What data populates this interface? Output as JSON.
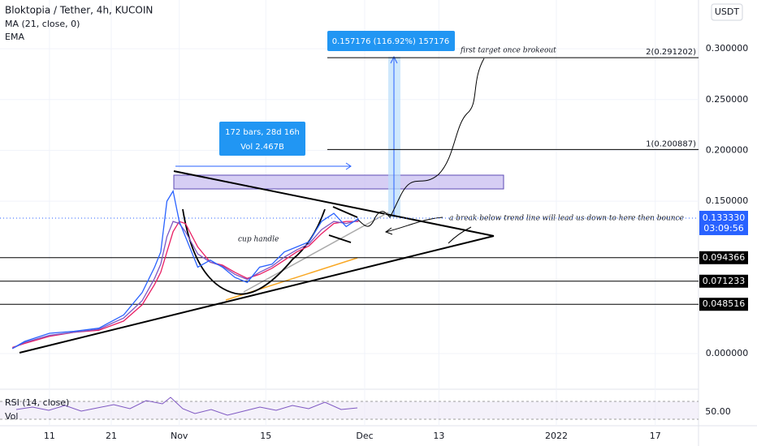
{
  "chart_data": {
    "type": "line",
    "title": "Bloktopia / Tether, 4h, KUCOIN",
    "currency": "USDT",
    "x": [
      4,
      6,
      10,
      14,
      18,
      22,
      25,
      27,
      28,
      29,
      30,
      31,
      32,
      34,
      36,
      38,
      40,
      42,
      44,
      46,
      48,
      50,
      52,
      54,
      56,
      58,
      60
    ],
    "values": [
      0.005,
      0.012,
      0.02,
      0.022,
      0.025,
      0.038,
      0.06,
      0.085,
      0.1,
      0.15,
      0.16,
      0.13,
      0.115,
      0.085,
      0.092,
      0.085,
      0.075,
      0.07,
      0.085,
      0.088,
      0.1,
      0.105,
      0.11,
      0.13,
      0.138,
      0.125,
      0.133
    ],
    "color": "#2962ff",
    "series": [
      {
        "name": "MA (21, close, 0)",
        "color": "#e91e63",
        "values": [
          0.006,
          0.01,
          0.017,
          0.021,
          0.023,
          0.032,
          0.048,
          0.068,
          0.08,
          0.1,
          0.12,
          0.13,
          0.128,
          0.105,
          0.09,
          0.087,
          0.08,
          0.074,
          0.078,
          0.084,
          0.092,
          0.1,
          0.106,
          0.118,
          0.128,
          0.13,
          0.13
        ]
      },
      {
        "name": "EMA",
        "color": "#7e57c2",
        "values": [
          0.005,
          0.011,
          0.018,
          0.021,
          0.024,
          0.035,
          0.052,
          0.074,
          0.088,
          0.115,
          0.13,
          0.128,
          0.12,
          0.098,
          0.09,
          0.086,
          0.078,
          0.073,
          0.08,
          0.086,
          0.095,
          0.102,
          0.108,
          0.122,
          0.13,
          0.128,
          0.131
        ]
      }
    ],
    "xlim": [
      2,
      115
    ],
    "xticks": [
      {
        "value": 10,
        "label": "11"
      },
      {
        "value": 20,
        "label": "21"
      },
      {
        "value": 31,
        "label": "Nov"
      },
      {
        "value": 45,
        "label": "15"
      },
      {
        "value": 61,
        "label": "Dec"
      },
      {
        "value": 73,
        "label": "13"
      },
      {
        "value": 92,
        "label": "2022"
      },
      {
        "value": 108,
        "label": "17"
      }
    ],
    "ylim": [
      -0.0335,
      0.348
    ],
    "yticks": [
      {
        "value": 0,
        "label": "0.000000"
      },
      {
        "value": 0.15,
        "label": "0.150000"
      },
      {
        "value": 0.2,
        "label": "0.200000"
      },
      {
        "value": 0.25,
        "label": "0.250000"
      },
      {
        "value": 0.3,
        "label": "0.300000"
      }
    ],
    "grid": true,
    "fib_levels": [
      {
        "value": 0.291202,
        "label": "2(0.291202)"
      },
      {
        "value": 0.200887,
        "label": "1(0.200887)"
      }
    ],
    "price_levels": [
      0.094366,
      0.071233,
      0.048516
    ],
    "last_price": {
      "value": 0.13333,
      "label": "0.133330",
      "countdown": "03:09:56"
    },
    "annotations": {
      "measure": "0.157176 (116.92%) 157176",
      "range_bars": "172 bars, 28d 16h",
      "range_vol": "Vol 2.467B",
      "target_note": "first target once brokeout",
      "cup_note": "cup handle",
      "break_note": "a break below trend line will lead us down to here then bounce"
    },
    "rsi_label": "RSI (14, close)",
    "vol_label": "Vol",
    "rsi_tick_label": "50.00"
  }
}
